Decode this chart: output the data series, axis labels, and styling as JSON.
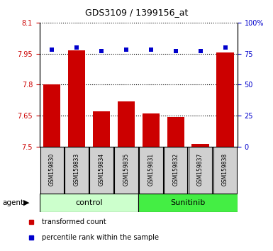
{
  "title": "GDS3109 / 1399156_at",
  "samples": [
    "GSM159830",
    "GSM159833",
    "GSM159834",
    "GSM159835",
    "GSM159831",
    "GSM159832",
    "GSM159837",
    "GSM159838"
  ],
  "bar_values": [
    7.8,
    7.965,
    7.67,
    7.72,
    7.66,
    7.645,
    7.515,
    7.955
  ],
  "percentile_values": [
    78,
    80,
    77,
    78,
    78,
    77,
    77,
    80
  ],
  "bar_bottom": 7.5,
  "ylim_left": [
    7.5,
    8.1
  ],
  "ylim_right": [
    0,
    100
  ],
  "yticks_left": [
    7.5,
    7.65,
    7.8,
    7.95,
    8.1
  ],
  "yticks_right": [
    0,
    25,
    50,
    75,
    100
  ],
  "ytick_labels_left": [
    "7.5",
    "7.65",
    "7.8",
    "7.95",
    "8.1"
  ],
  "ytick_labels_right": [
    "0",
    "25",
    "50",
    "75",
    "100%"
  ],
  "bar_color": "#cc0000",
  "dot_color": "#0000cc",
  "n_control": 4,
  "n_sunitinib": 4,
  "control_label": "control",
  "sunitinib_label": "Sunitinib",
  "agent_label": "agent",
  "legend_bar_label": "transformed count",
  "legend_dot_label": "percentile rank within the sample",
  "control_bg": "#ccffcc",
  "sunitinib_bg": "#44ee44",
  "sample_bg": "#d0d0d0",
  "grid_linestyle": "dotted",
  "grid_color": "#000000",
  "title_fontsize": 9,
  "tick_fontsize": 7,
  "sample_fontsize": 5.5,
  "group_fontsize": 8,
  "legend_fontsize": 7,
  "bar_width": 0.7
}
